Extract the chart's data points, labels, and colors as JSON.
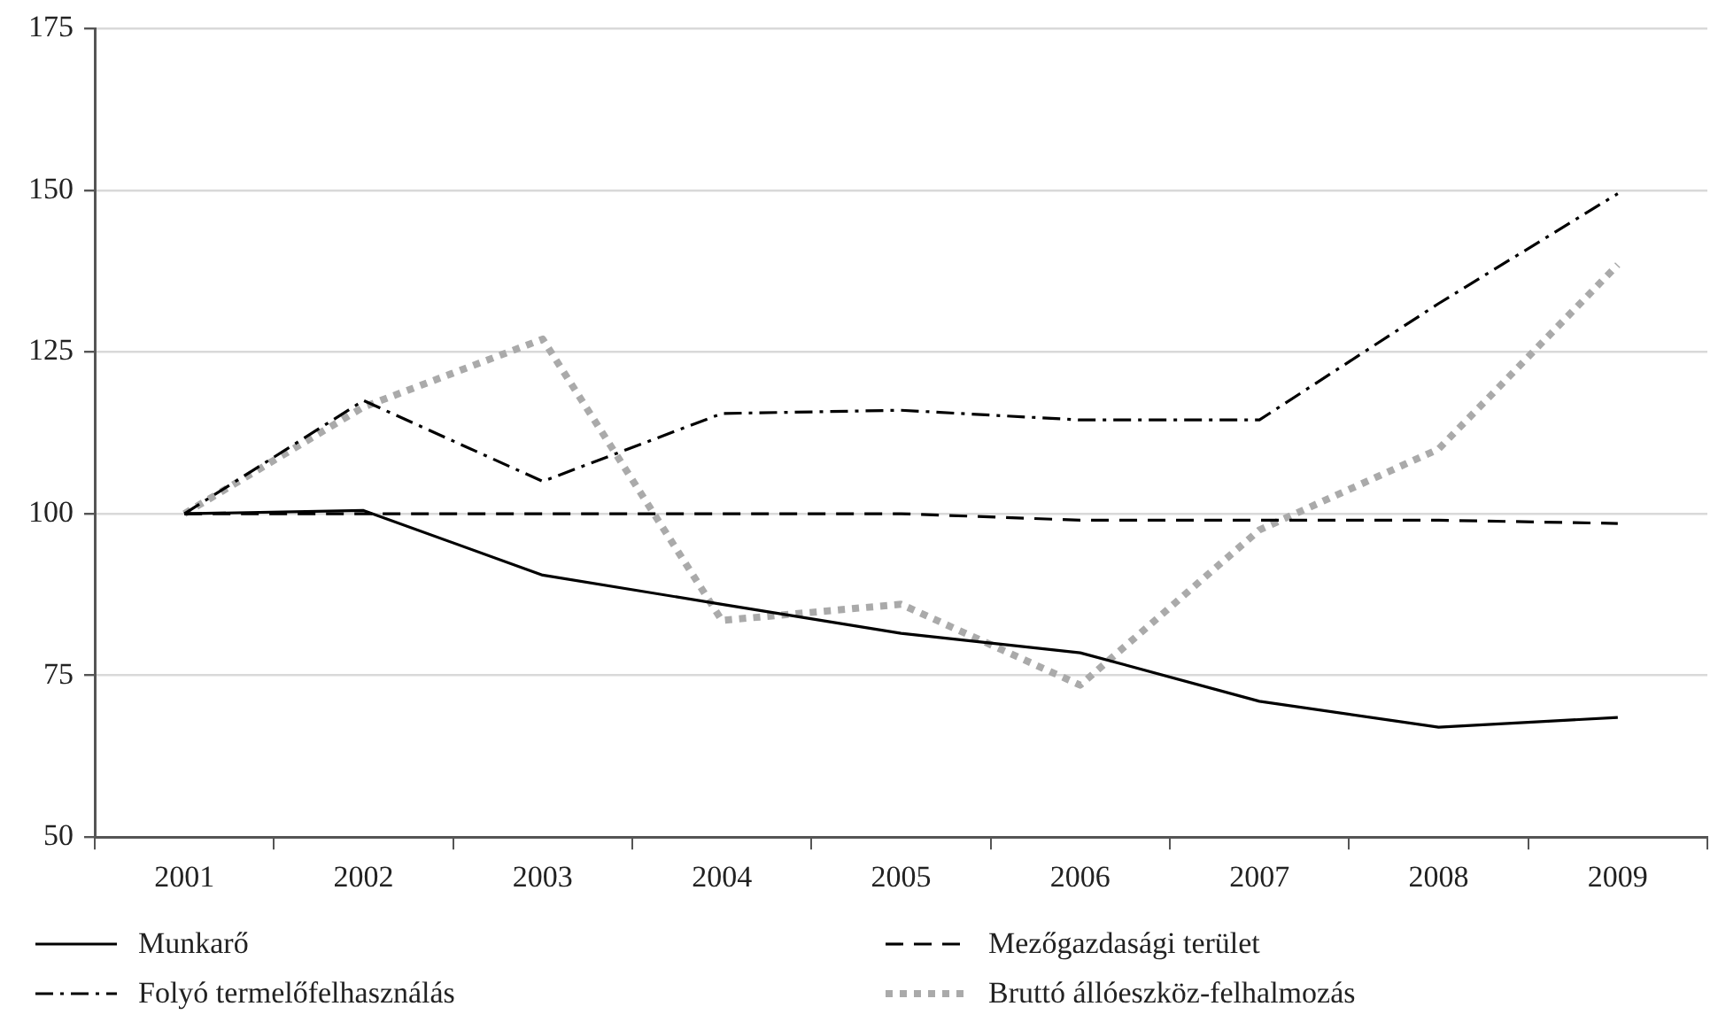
{
  "chart_data": {
    "type": "line",
    "categories": [
      "2001",
      "2002",
      "2003",
      "2004",
      "2005",
      "2006",
      "2007",
      "2008",
      "2009"
    ],
    "series": [
      {
        "name": "Munkarő",
        "color": "#000000",
        "line_style": "solid",
        "values": [
          100,
          100.5,
          90.5,
          86,
          81.5,
          78.5,
          71,
          67,
          68.5
        ]
      },
      {
        "name": "Mezőgazdasági terület",
        "color": "#000000",
        "line_style": "dashed",
        "values": [
          100,
          100,
          100,
          100,
          100,
          99,
          99,
          99,
          98.5
        ]
      },
      {
        "name": "Folyó termelőfelhasználás",
        "color": "#000000",
        "line_style": "dashdot",
        "values": [
          100,
          117.5,
          105,
          115.5,
          116,
          114.5,
          114.5,
          132.5,
          149.5
        ]
      },
      {
        "name": "Bruttó állóeszköz-felhalmozás",
        "color": "#aaaaaa",
        "line_style": "dotted",
        "values": [
          100,
          116.5,
          127,
          83.5,
          86,
          73.5,
          97.5,
          110,
          138.5
        ]
      }
    ],
    "ylim": [
      50,
      175
    ],
    "yticks": [
      50,
      75,
      100,
      125,
      150,
      175
    ],
    "grid": "y",
    "legend": "bottom",
    "marker": "none"
  }
}
